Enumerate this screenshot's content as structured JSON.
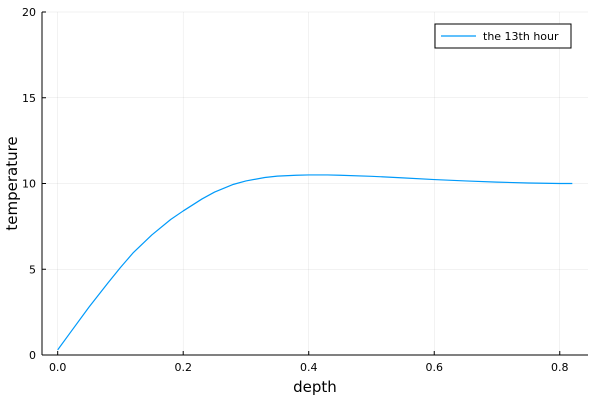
{
  "chart_data": {
    "type": "line",
    "title": "",
    "xlabel": "depth",
    "ylabel": "temperature",
    "xlim": [
      -0.025,
      0.845
    ],
    "ylim": [
      0,
      20
    ],
    "x_ticks": [
      0.0,
      0.2,
      0.4,
      0.6,
      0.8
    ],
    "x_tick_labels": [
      "0.0",
      "0.2",
      "0.4",
      "0.6",
      "0.8"
    ],
    "y_ticks": [
      0,
      5,
      10,
      15,
      20
    ],
    "y_tick_labels": [
      "0",
      "5",
      "10",
      "15",
      "20"
    ],
    "grid": true,
    "legend_position": "top-right",
    "series": [
      {
        "name": "the 13th hour",
        "color": "#009AFA",
        "x": [
          0.0,
          0.02,
          0.05,
          0.08,
          0.1,
          0.12,
          0.15,
          0.18,
          0.2,
          0.23,
          0.25,
          0.28,
          0.3,
          0.33,
          0.35,
          0.38,
          0.4,
          0.43,
          0.45,
          0.5,
          0.55,
          0.6,
          0.65,
          0.7,
          0.75,
          0.8,
          0.82
        ],
        "y": [
          0.3,
          1.3,
          2.8,
          4.2,
          5.1,
          5.95,
          7.0,
          7.9,
          8.4,
          9.1,
          9.5,
          9.95,
          10.15,
          10.35,
          10.43,
          10.48,
          10.5,
          10.5,
          10.48,
          10.42,
          10.33,
          10.23,
          10.15,
          10.08,
          10.03,
          10.0,
          10.0
        ]
      }
    ]
  }
}
